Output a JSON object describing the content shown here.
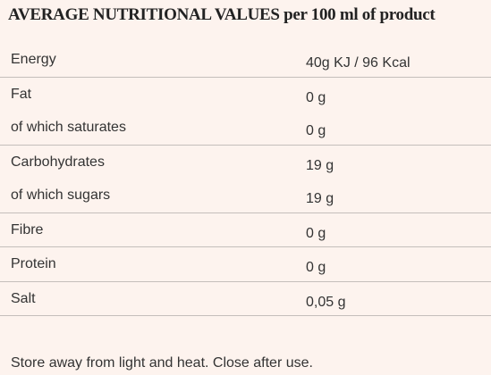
{
  "title": "AVERAGE NUTRITIONAL VALUES per 100 ml of product",
  "rows": [
    {
      "label": "Energy",
      "value": "40g KJ / 96 Kcal"
    },
    {
      "label": "Fat",
      "value": "0 g"
    },
    {
      "label": "of which saturates",
      "value": "0 g"
    },
    {
      "label": "Carbohydrates",
      "value": "19 g"
    },
    {
      "label": "of which sugars",
      "value": "19 g"
    },
    {
      "label": "Fibre",
      "value": "0 g"
    },
    {
      "label": "Protein",
      "value": "0 g"
    },
    {
      "label": "Salt",
      "value": "0,05 g"
    }
  ],
  "footer": "Store away from light and heat. Close after use."
}
